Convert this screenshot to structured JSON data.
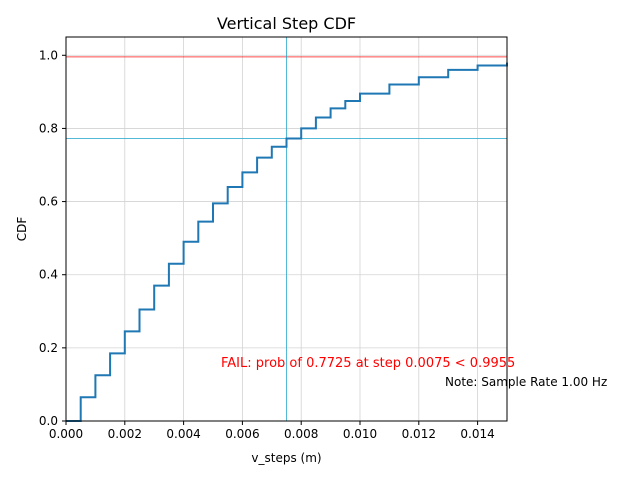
{
  "chart_data": {
    "type": "line",
    "title": "Vertical Step CDF",
    "xlabel": "v_steps (m)",
    "ylabel": "CDF",
    "xlim": [
      0,
      0.015
    ],
    "ylim": [
      0,
      1.05
    ],
    "grid": true,
    "x_ticks": [
      "0.000",
      "0.002",
      "0.004",
      "0.006",
      "0.008",
      "0.010",
      "0.012",
      "0.014"
    ],
    "x_tick_values": [
      0,
      0.002,
      0.004,
      0.006,
      0.008,
      0.01,
      0.012,
      0.014
    ],
    "y_ticks": [
      "0.0",
      "0.2",
      "0.4",
      "0.6",
      "0.8",
      "1.0"
    ],
    "y_tick_values": [
      0,
      0.2,
      0.4,
      0.6,
      0.8,
      1.0
    ],
    "series": [
      {
        "color": "#1f77b4",
        "x": [
          0,
          0.0005,
          0.001,
          0.0015,
          0.002,
          0.0025,
          0.003,
          0.0035,
          0.004,
          0.0045,
          0.005,
          0.0055,
          0.006,
          0.0065,
          0.007,
          0.0075,
          0.008,
          0.0085,
          0.009,
          0.0095,
          0.01,
          0.011,
          0.012,
          0.013,
          0.014,
          0.015
        ],
        "y": [
          0.0,
          0.065,
          0.125,
          0.185,
          0.245,
          0.305,
          0.37,
          0.43,
          0.49,
          0.545,
          0.595,
          0.64,
          0.68,
          0.72,
          0.75,
          0.7725,
          0.8,
          0.83,
          0.855,
          0.875,
          0.895,
          0.92,
          0.94,
          0.96,
          0.972,
          0.98
        ]
      }
    ],
    "reference_lines": {
      "threshold_y": 0.9955,
      "threshold_color": "#ff0000",
      "marker_x": 0.0075,
      "marker_y": 0.7725,
      "marker_color": "#1ba1c9"
    },
    "annotations": [
      {
        "text": "FAIL: prob of 0.7725 at step 0.0075 < 0.9955",
        "color": "#ff0000"
      },
      {
        "text": "Note: Sample Rate 1.00 Hz",
        "color": "#000000"
      }
    ]
  }
}
